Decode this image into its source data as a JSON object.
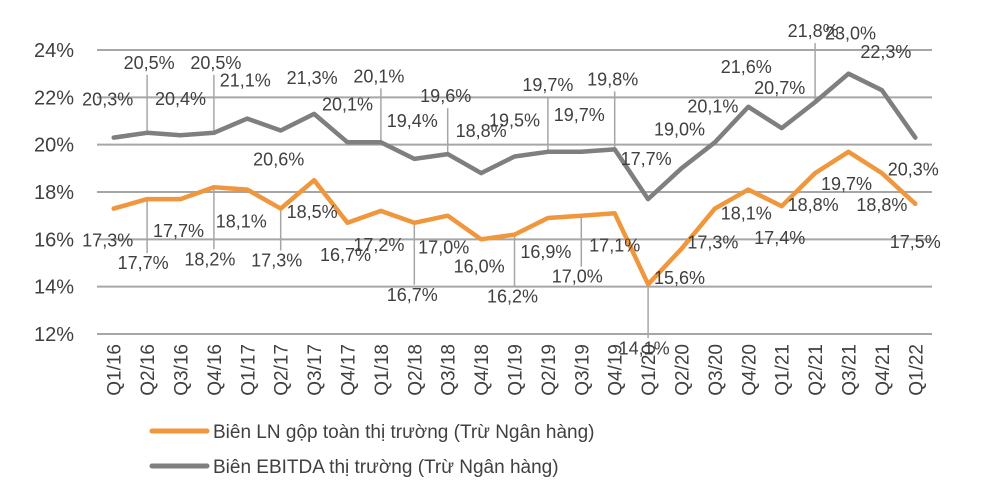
{
  "chart_data": {
    "type": "line",
    "title": "",
    "xlabel": "",
    "ylabel": "",
    "ylim": [
      12,
      24
    ],
    "y_ticks": [
      "12%",
      "14%",
      "16%",
      "18%",
      "20%",
      "22%",
      "24%"
    ],
    "grid": true,
    "legend_position": "bottom-left",
    "categories": [
      "Q1/16",
      "Q2/16",
      "Q3/16",
      "Q4/16",
      "Q1/17",
      "Q2/17",
      "Q3/17",
      "Q4/17",
      "Q1/18",
      "Q2/18",
      "Q3/18",
      "Q4/18",
      "Q1/19",
      "Q2/19",
      "Q3/19",
      "Q4/19",
      "Q1/20",
      "Q2/20",
      "Q3/20",
      "Q4/20",
      "Q1/21",
      "Q2/21",
      "Q3/21",
      "Q4/21",
      "Q1/22"
    ],
    "series": [
      {
        "name": "Biên LN gộp toàn thị trường (Trừ Ngân hàng)",
        "color": "#F0963C",
        "values": [
          17.3,
          17.7,
          17.7,
          18.2,
          18.1,
          17.3,
          18.5,
          16.7,
          17.2,
          16.7,
          17.0,
          16.0,
          16.2,
          16.9,
          17.0,
          17.1,
          14.1,
          15.6,
          17.3,
          18.1,
          17.4,
          18.8,
          19.7,
          18.8,
          17.5
        ],
        "labels": [
          "17,3%",
          "17,7%",
          "17,7%",
          "18,2%",
          "18,1%",
          "17,3%",
          "18,5%",
          "16,7%",
          "17,2%",
          "16,7%",
          "17,0%",
          "16,0%",
          "16,2%",
          "16,9%",
          "17,0%",
          "17,1%",
          "14,1%",
          "15,6%",
          "17,3%",
          "18,1%",
          "17,4%",
          "18,8%",
          "19,7%",
          "18,8%",
          "17,5%"
        ]
      },
      {
        "name": "Biên EBITDA thị trường (Trừ Ngân hàng)",
        "color": "#7F7F7F",
        "values": [
          20.3,
          20.5,
          20.4,
          20.5,
          21.1,
          20.6,
          21.3,
          20.1,
          20.1,
          19.4,
          19.6,
          18.8,
          19.5,
          19.7,
          19.7,
          19.8,
          17.7,
          19.0,
          20.1,
          21.6,
          20.7,
          21.8,
          23.0,
          22.3,
          20.3
        ],
        "labels": [
          "20,3%",
          "20,5%",
          "20,4%",
          "20,5%",
          "21,1%",
          "20,6%",
          "21,3%",
          "20,1%",
          "20,1%",
          "19,4%",
          "19,6%",
          "18,8%",
          "19,5%",
          "19,7%",
          "19,7%",
          "19,8%",
          "17,7%",
          "19,0%",
          "20,1%",
          "21,6%",
          "20,7%",
          "21,8%",
          "23,0%",
          "22,3%",
          "20,3%"
        ]
      }
    ]
  }
}
